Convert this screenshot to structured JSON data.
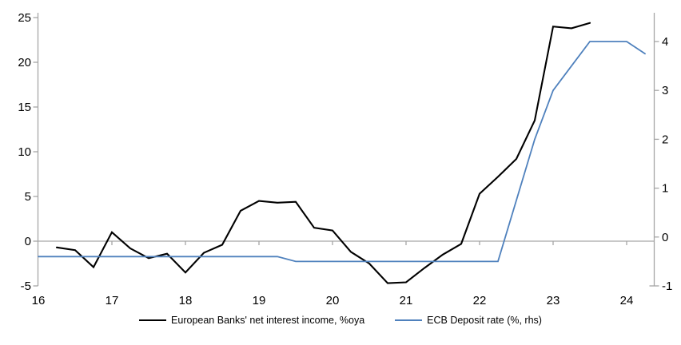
{
  "chart_data": {
    "type": "line",
    "title": "",
    "legend_position": "bottom",
    "grid": false,
    "x_axis": {
      "ticks": [
        "16",
        "17",
        "18",
        "19",
        "20",
        "21",
        "22",
        "23",
        "24"
      ],
      "range": [
        16,
        24.4
      ],
      "tick_marks_on": "zero-line"
    },
    "left_axis": {
      "ticks": [
        25,
        20,
        15,
        10,
        5,
        0,
        -5
      ],
      "range": [
        -5,
        25
      ]
    },
    "right_axis": {
      "ticks": [
        4,
        3,
        2,
        1,
        0,
        -1
      ],
      "range": [
        -1,
        4.6
      ]
    },
    "series": [
      {
        "name": "European Banks' net interest income, %oya",
        "axis": "left",
        "color": "#000000",
        "points": [
          [
            16.25,
            -0.7
          ],
          [
            16.5,
            -1.0
          ],
          [
            16.75,
            -2.9
          ],
          [
            17.0,
            1.0
          ],
          [
            17.25,
            -0.8
          ],
          [
            17.5,
            -1.9
          ],
          [
            17.75,
            -1.4
          ],
          [
            18.0,
            -3.5
          ],
          [
            18.25,
            -1.3
          ],
          [
            18.5,
            -0.4
          ],
          [
            18.75,
            3.4
          ],
          [
            19.0,
            4.5
          ],
          [
            19.25,
            4.3
          ],
          [
            19.5,
            4.4
          ],
          [
            19.75,
            1.5
          ],
          [
            20.0,
            1.2
          ],
          [
            20.25,
            -1.2
          ],
          [
            20.5,
            -2.5
          ],
          [
            20.75,
            -4.7
          ],
          [
            21.0,
            -4.6
          ],
          [
            21.25,
            -3.0
          ],
          [
            21.5,
            -1.5
          ],
          [
            21.75,
            -0.3
          ],
          [
            22.0,
            5.3
          ],
          [
            22.25,
            7.2
          ],
          [
            22.5,
            9.2
          ],
          [
            22.75,
            13.5
          ],
          [
            23.0,
            24.0
          ],
          [
            23.25,
            23.8
          ],
          [
            23.5,
            24.4
          ]
        ]
      },
      {
        "name": "ECB Deposit rate (%, rhs)",
        "axis": "right",
        "color": "#4f81bd",
        "points": [
          [
            16.0,
            -0.4
          ],
          [
            19.25,
            -0.4
          ],
          [
            19.5,
            -0.5
          ],
          [
            22.25,
            -0.5
          ],
          [
            22.5,
            0.75
          ],
          [
            22.75,
            2.0
          ],
          [
            23.0,
            3.0
          ],
          [
            23.25,
            3.5
          ],
          [
            23.5,
            4.0
          ],
          [
            23.75,
            4.0
          ],
          [
            24.0,
            4.0
          ],
          [
            24.25,
            3.75
          ]
        ]
      }
    ]
  },
  "colors": {
    "axis_line": "#a6a6a6",
    "zero_line": "#a6a6a6",
    "text": "#000000",
    "background": "#ffffff",
    "series_black": "#000000",
    "series_blue": "#4f81bd"
  }
}
